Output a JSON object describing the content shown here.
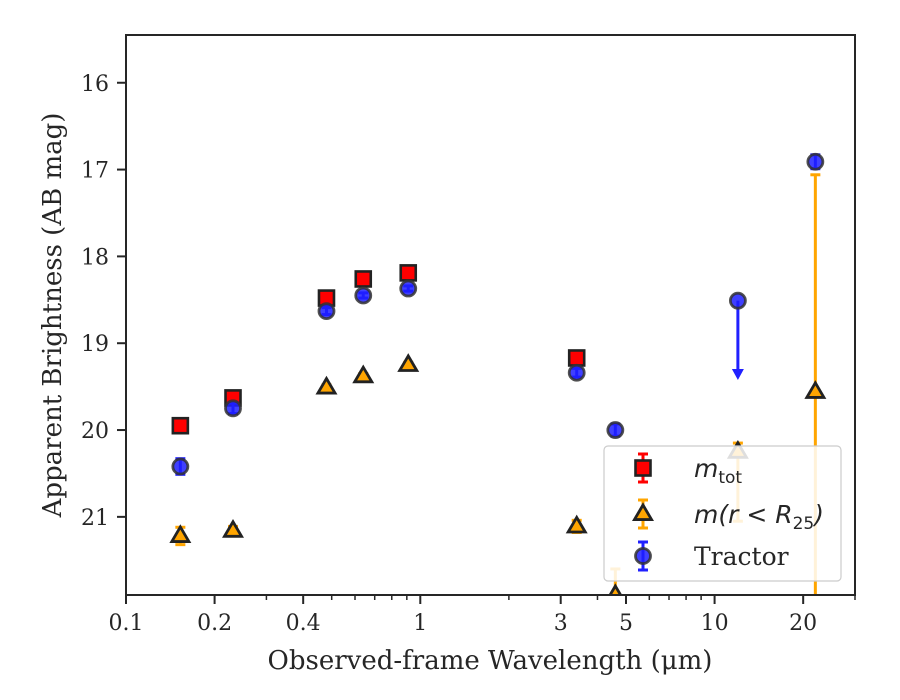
{
  "chart_data": {
    "type": "scatter",
    "xlabel": "Observed-frame Wavelength (μm)",
    "ylabel": "Apparent Brightness (AB mag)",
    "x_scale": "log",
    "xlim": [
      0.1,
      30
    ],
    "ylim": [
      21.9,
      15.45
    ],
    "y_inverted": true,
    "x_ticks": [
      {
        "value": 0.1,
        "label": "0.1"
      },
      {
        "value": 0.2,
        "label": "0.2"
      },
      {
        "value": 0.4,
        "label": "0.4"
      },
      {
        "value": 1,
        "label": "1"
      },
      {
        "value": 3,
        "label": "3"
      },
      {
        "value": 5,
        "label": "5"
      },
      {
        "value": 10,
        "label": "10"
      },
      {
        "value": 20,
        "label": "20"
      }
    ],
    "y_ticks": [
      {
        "value": 16,
        "label": "16"
      },
      {
        "value": 17,
        "label": "17"
      },
      {
        "value": 18,
        "label": "18"
      },
      {
        "value": 19,
        "label": "19"
      },
      {
        "value": 20,
        "label": "20"
      },
      {
        "value": 21,
        "label": "21"
      }
    ],
    "grid": false,
    "legend": {
      "placement": "lower-right",
      "entries": [
        {
          "series": "m_tot",
          "base": "m",
          "sub": "tot",
          "rest": ""
        },
        {
          "series": "m_r25",
          "base": "m(r < R",
          "sub": "25",
          "rest": ")"
        },
        {
          "series": "tractor",
          "text": "Tractor"
        }
      ]
    },
    "series": [
      {
        "name": "m_tot",
        "marker": "square",
        "color": "#ff0000",
        "edge_color": "#222222",
        "err_color": "#ff0000",
        "points": [
          {
            "x": 0.153,
            "y": 19.95,
            "err": 0.06
          },
          {
            "x": 0.231,
            "y": 19.63,
            "err": 0.05
          },
          {
            "x": 0.48,
            "y": 18.48,
            "err": 0.03
          },
          {
            "x": 0.64,
            "y": 18.26,
            "err": 0.03
          },
          {
            "x": 0.91,
            "y": 18.19,
            "err": 0.03
          },
          {
            "x": 3.4,
            "y": 19.17,
            "err": 0.04
          }
        ]
      },
      {
        "name": "m_r25",
        "marker": "triangle",
        "color": "#ffa500",
        "edge_color": "#222222",
        "err_color": "#ffa500",
        "points": [
          {
            "x": 0.153,
            "y": 21.22,
            "err": 0.1
          },
          {
            "x": 0.231,
            "y": 21.16,
            "err": 0.05
          },
          {
            "x": 0.48,
            "y": 19.51,
            "err": 0.03
          },
          {
            "x": 0.64,
            "y": 19.38,
            "err": 0.03
          },
          {
            "x": 0.91,
            "y": 19.25,
            "err": 0.03
          },
          {
            "x": 3.4,
            "y": 21.11,
            "err": 0.07
          },
          {
            "x": 4.6,
            "y": 21.9,
            "err": 0.3
          },
          {
            "x": 12,
            "y": 20.25,
            "err_down": 0.8,
            "err_up": 0.1
          },
          {
            "x": 22,
            "y": 19.56,
            "err_down": 2.5,
            "err_up": 2.5
          }
        ]
      },
      {
        "name": "tractor",
        "marker": "circle",
        "color": "#1f1fff",
        "edge_color": "#333333",
        "err_color": "#2020ff",
        "points": [
          {
            "x": 0.153,
            "y": 20.42,
            "err": 0.09
          },
          {
            "x": 0.231,
            "y": 19.75,
            "err": 0.06
          },
          {
            "x": 0.48,
            "y": 18.63,
            "err": 0.04
          },
          {
            "x": 0.64,
            "y": 18.45,
            "err": 0.03
          },
          {
            "x": 0.91,
            "y": 18.37,
            "err": 0.03
          },
          {
            "x": 3.4,
            "y": 19.34,
            "err": 0.05
          },
          {
            "x": 4.6,
            "y": 20.0,
            "err": 0.07
          },
          {
            "x": 22,
            "y": 16.91,
            "err": 0.08
          }
        ],
        "upper_limits": [
          {
            "x": 12,
            "y": 18.51,
            "y_end": 19.4
          }
        ]
      }
    ]
  }
}
